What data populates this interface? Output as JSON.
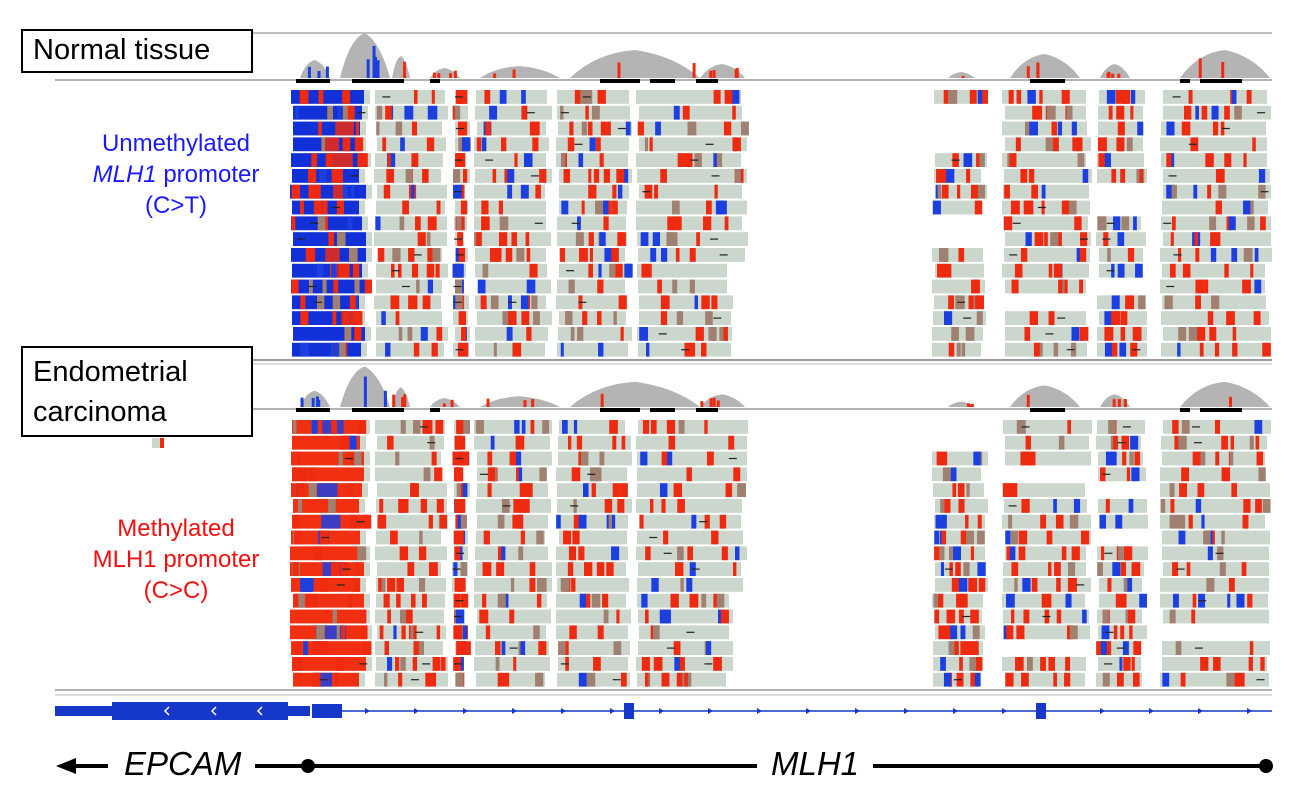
{
  "panels": [
    {
      "title": "Normal tissue",
      "label_line1": "Unmethylated",
      "label_gene": "MLH1",
      "label_suffix": " promoter",
      "label_line3": "(C>T)",
      "label_color": "#1a1aff",
      "dominant_promoter_color": "#1230d8"
    },
    {
      "title_line1": "Endometrial",
      "title_line2": "carcinoma",
      "label_line1": "Methylated",
      "label_line2": "MLH1 promoter",
      "label_line3": "(C>C)",
      "label_color": "#f01010",
      "dominant_promoter_color": "#f03010"
    }
  ],
  "genes": {
    "left": "EPCAM",
    "right": "MLH1"
  },
  "colors": {
    "read": "#cbd6cc",
    "methylated": "#ee2a10",
    "unmethylated": "#1c3fe0",
    "coverage": "#b4b4b4",
    "gene_model": "#1538c8"
  }
}
